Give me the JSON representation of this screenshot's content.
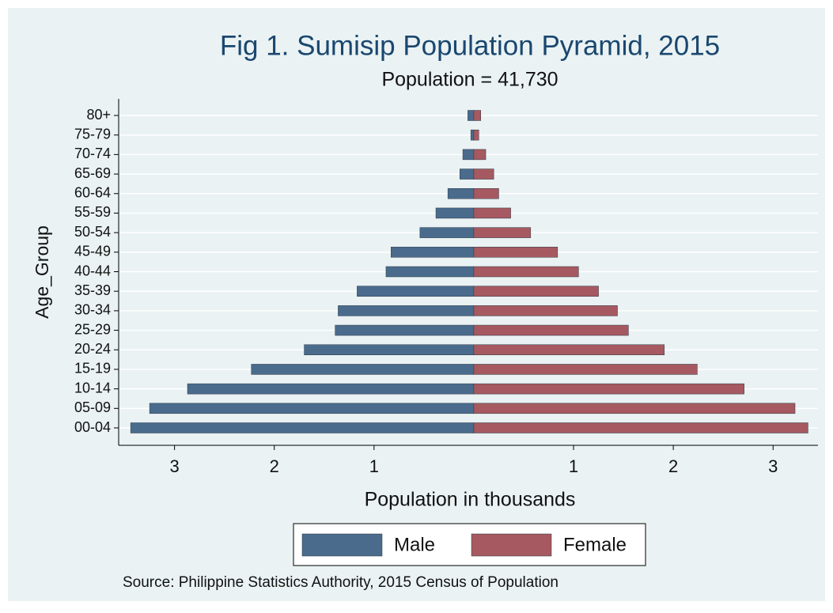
{
  "chart_data": {
    "type": "pyramid",
    "title": "Fig 1. Sumisip Population Pyramid, 2015",
    "subtitle": "Population = 41,730",
    "x_label": "Population in thousands",
    "y_label": "Age_Group",
    "note": "Source: Philippine Statistics Authority, 2015 Census of Population",
    "categories": [
      "00-04",
      "05-09",
      "10-14",
      "15-19",
      "20-24",
      "25-29",
      "30-34",
      "35-39",
      "40-44",
      "45-49",
      "50-54",
      "55-59",
      "60-64",
      "65-69",
      "70-74",
      "75-79",
      "80+"
    ],
    "series": [
      {
        "name": "Male",
        "color": "#4a6b8c",
        "side": "left",
        "values": [
          3.44,
          3.25,
          2.87,
          2.23,
          1.7,
          1.39,
          1.36,
          1.17,
          0.88,
          0.83,
          0.54,
          0.38,
          0.26,
          0.14,
          0.11,
          0.03,
          0.06
        ]
      },
      {
        "name": "Female",
        "color": "#a65960",
        "side": "right",
        "values": [
          3.35,
          3.22,
          2.71,
          2.24,
          1.91,
          1.55,
          1.44,
          1.25,
          1.05,
          0.84,
          0.57,
          0.37,
          0.25,
          0.2,
          0.12,
          0.05,
          0.07
        ]
      }
    ],
    "xlim": [
      -3.56,
      3.45
    ],
    "xticks": [
      {
        "value": -3,
        "label": "3"
      },
      {
        "value": -2,
        "label": "2"
      },
      {
        "value": -1,
        "label": "1"
      },
      1,
      2,
      3
    ],
    "grid": true,
    "legend": "bottom"
  }
}
